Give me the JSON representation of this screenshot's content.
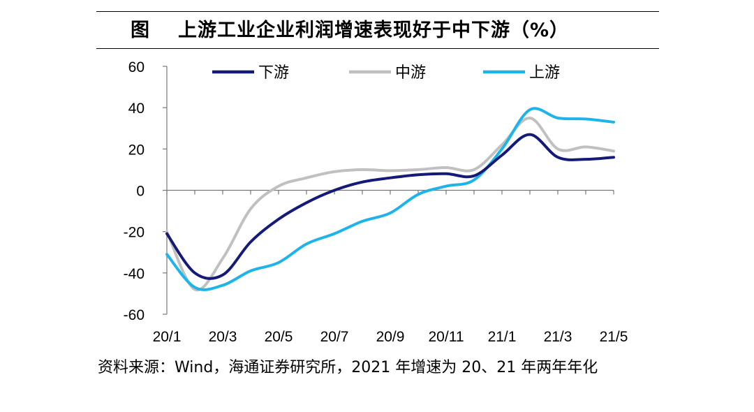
{
  "figure": {
    "label": "图",
    "title": "上游工业企业利润增速表现好于中下游（%）",
    "source": "资料来源：Wind，海通证券研究所，2021 年增速为 20、21 年两年年化"
  },
  "chart_data": {
    "type": "line",
    "title": "上游工业企业利润增速表现好于中下游（%）",
    "xlabel": "",
    "ylabel": "",
    "ylim": [
      -60,
      60
    ],
    "yticks": [
      "60",
      "40",
      "20",
      "0",
      "-20",
      "-40",
      "-60"
    ],
    "ytick_values": [
      60,
      40,
      20,
      0,
      -20,
      -40,
      -60
    ],
    "xticks": [
      "20/1",
      "20/3",
      "20/5",
      "20/7",
      "20/9",
      "20/11",
      "21/1",
      "21/3",
      "21/5"
    ],
    "x": [
      "20/1",
      "20/2",
      "20/3",
      "20/4",
      "20/5",
      "20/6",
      "20/7",
      "20/8",
      "20/9",
      "20/10",
      "20/11",
      "20/12",
      "21/1",
      "21/2",
      "21/3",
      "21/4",
      "21/5"
    ],
    "legend_position": "top",
    "grid": false,
    "series": [
      {
        "name": "下游",
        "color": "#141a78",
        "values": [
          -21,
          -40,
          -41,
          -25,
          -14,
          -6,
          0,
          4,
          6,
          7.5,
          8,
          7,
          17,
          27,
          16,
          15,
          16
        ]
      },
      {
        "name": "中游",
        "color": "#c0c0c0",
        "values": [
          -20,
          -48,
          -33,
          -9,
          2,
          6,
          9,
          10,
          9.5,
          10,
          11,
          10,
          22,
          35,
          20,
          21,
          19
        ]
      },
      {
        "name": "上游",
        "color": "#1eb4ea",
        "values": [
          -31,
          -47,
          -46,
          -39,
          -35,
          -26,
          -21,
          -15,
          -11,
          -2,
          2,
          5,
          20,
          39,
          35,
          34.5,
          33
        ]
      }
    ]
  }
}
